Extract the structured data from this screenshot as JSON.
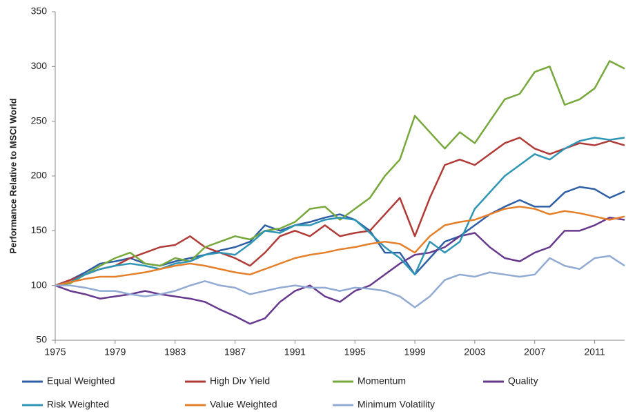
{
  "chart_data": {
    "type": "line",
    "y_label": "Performance Relative to MSCI World",
    "x": [
      1975,
      1976,
      1977,
      1978,
      1979,
      1980,
      1981,
      1982,
      1983,
      1984,
      1985,
      1986,
      1987,
      1988,
      1989,
      1990,
      1991,
      1992,
      1993,
      1994,
      1995,
      1996,
      1997,
      1998,
      1999,
      2000,
      2001,
      2002,
      2003,
      2004,
      2005,
      2006,
      2007,
      2008,
      2009,
      2010,
      2011,
      2012,
      2013
    ],
    "xlim": [
      1975,
      2013
    ],
    "xticks": [
      1975,
      1979,
      1983,
      1987,
      1991,
      1995,
      1999,
      2003,
      2007,
      2011
    ],
    "ylim": [
      50,
      350
    ],
    "yticks": [
      50,
      100,
      150,
      200,
      250,
      300,
      350
    ],
    "grid": false,
    "legend": "bottom",
    "series": [
      {
        "name": "Equal Weighted",
        "color": "#2e5fa6",
        "values": [
          100,
          105,
          112,
          120,
          122,
          125,
          120,
          118,
          122,
          125,
          128,
          132,
          135,
          140,
          155,
          150,
          155,
          158,
          162,
          165,
          160,
          150,
          130,
          130,
          110,
          125,
          140,
          145,
          155,
          165,
          172,
          178,
          172,
          172,
          185,
          190,
          188,
          180,
          186
        ]
      },
      {
        "name": "High Div Yield",
        "color": "#b03a36",
        "values": [
          100,
          105,
          110,
          115,
          118,
          125,
          130,
          135,
          137,
          145,
          135,
          130,
          125,
          118,
          130,
          145,
          150,
          145,
          155,
          145,
          148,
          150,
          165,
          180,
          145,
          180,
          210,
          215,
          210,
          220,
          230,
          235,
          225,
          220,
          225,
          230,
          228,
          232,
          228
        ]
      },
      {
        "name": "Momentum",
        "color": "#77a83b",
        "values": [
          100,
          102,
          110,
          118,
          125,
          130,
          120,
          118,
          125,
          122,
          135,
          140,
          145,
          142,
          150,
          152,
          158,
          170,
          172,
          160,
          170,
          180,
          200,
          215,
          255,
          240,
          225,
          240,
          230,
          250,
          270,
          275,
          295,
          300,
          265,
          270,
          280,
          305,
          298
        ]
      },
      {
        "name": "Quality",
        "color": "#66388e",
        "values": [
          100,
          95,
          92,
          88,
          90,
          92,
          95,
          92,
          90,
          88,
          85,
          78,
          72,
          65,
          70,
          85,
          95,
          100,
          90,
          85,
          95,
          100,
          110,
          120,
          128,
          130,
          135,
          145,
          148,
          135,
          125,
          122,
          130,
          135,
          150,
          150,
          155,
          162,
          160
        ]
      },
      {
        "name": "Risk Weighted",
        "color": "#2e95b5",
        "values": [
          100,
          103,
          110,
          115,
          118,
          120,
          118,
          115,
          120,
          122,
          128,
          130,
          128,
          138,
          150,
          148,
          155,
          155,
          160,
          162,
          160,
          148,
          135,
          125,
          110,
          140,
          130,
          140,
          170,
          185,
          200,
          210,
          220,
          215,
          225,
          232,
          235,
          233,
          235
        ]
      },
      {
        "name": "Value Weighted",
        "color": "#e57f29",
        "values": [
          100,
          103,
          106,
          108,
          108,
          110,
          112,
          115,
          118,
          120,
          118,
          115,
          112,
          110,
          115,
          120,
          125,
          128,
          130,
          133,
          135,
          138,
          140,
          138,
          130,
          145,
          155,
          158,
          160,
          165,
          170,
          172,
          170,
          165,
          168,
          166,
          163,
          160,
          163
        ]
      },
      {
        "name": "Minimum Volatility",
        "color": "#91aad3",
        "values": [
          100,
          100,
          98,
          95,
          95,
          92,
          90,
          92,
          95,
          100,
          104,
          100,
          98,
          92,
          95,
          98,
          100,
          98,
          98,
          95,
          98,
          97,
          95,
          90,
          80,
          90,
          105,
          110,
          108,
          112,
          110,
          108,
          110,
          125,
          118,
          115,
          125,
          127,
          118
        ]
      }
    ]
  }
}
